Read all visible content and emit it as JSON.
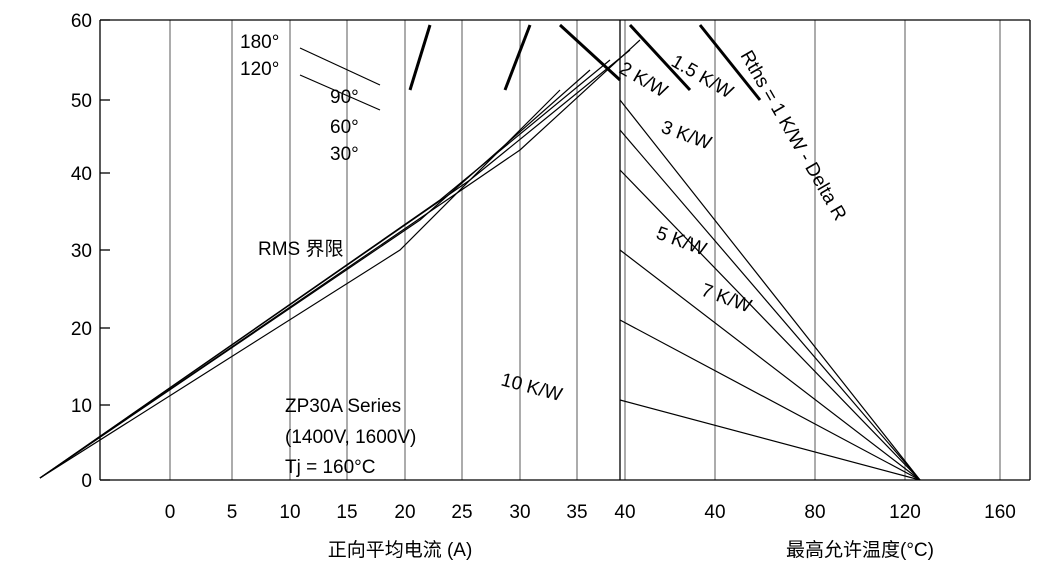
{
  "y_axis": {
    "ticks": [
      "60",
      "50",
      "40",
      "30",
      "20",
      "10",
      "0"
    ]
  },
  "x_axis_left": {
    "ticks": [
      "0",
      "5",
      "10",
      "15",
      "20",
      "25",
      "30",
      "35",
      "40"
    ],
    "label": "正向平均电流 (A)"
  },
  "x_axis_right": {
    "ticks": [
      "40",
      "80",
      "120",
      "160"
    ],
    "label": "最高允许温度(°C)"
  },
  "angle_labels": [
    "180°",
    "120°",
    "90°",
    "60°",
    "30°"
  ],
  "rms_label": "RMS 界限",
  "resistance_labels": [
    "2 K/W",
    "1.5 K/W",
    "Rths = 1 K/W - Delta R",
    "3 K/W",
    "5 K/W",
    "7 K/W",
    "10 K/W"
  ],
  "device": {
    "name": "ZP30A  Series",
    "rating": "(1400V, 1600V)",
    "tj": "Tj = 160°C"
  }
}
